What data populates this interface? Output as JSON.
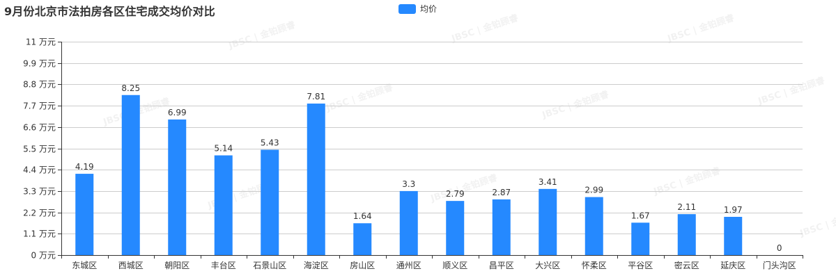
{
  "title": "9月份北京市法拍房各区住宅成交均价对比",
  "legend": {
    "label": "均价",
    "color": "#2589ff"
  },
  "watermark": "JBSC | 金铂顾睿",
  "colors": {
    "bar": "#2589ff",
    "grid": "#cccccc",
    "axis": "#333333"
  },
  "chart_data": {
    "type": "bar",
    "title": "9月份北京市法拍房各区住宅成交均价对比",
    "xlabel": "",
    "ylabel": "",
    "y_unit": "万元",
    "ylim": [
      0,
      11
    ],
    "y_ticks": [
      "0 万元",
      "1.1 万元",
      "2.2 万元",
      "3.3 万元",
      "4.4 万元",
      "5.5 万元",
      "6.6 万元",
      "7.7 万元",
      "8.8 万元",
      "9.9 万元",
      "11 万元"
    ],
    "grid": true,
    "legend_position": "top-center",
    "categories": [
      "东城区",
      "西城区",
      "朝阳区",
      "丰台区",
      "石景山区",
      "海淀区",
      "房山区",
      "通州区",
      "顺义区",
      "昌平区",
      "大兴区",
      "怀柔区",
      "平谷区",
      "密云区",
      "延庆区",
      "门头沟区"
    ],
    "series": [
      {
        "name": "均价",
        "values": [
          4.19,
          8.25,
          6.99,
          5.14,
          5.43,
          7.81,
          1.64,
          3.3,
          2.79,
          2.87,
          3.41,
          2.99,
          1.67,
          2.11,
          1.97,
          0
        ]
      }
    ]
  }
}
